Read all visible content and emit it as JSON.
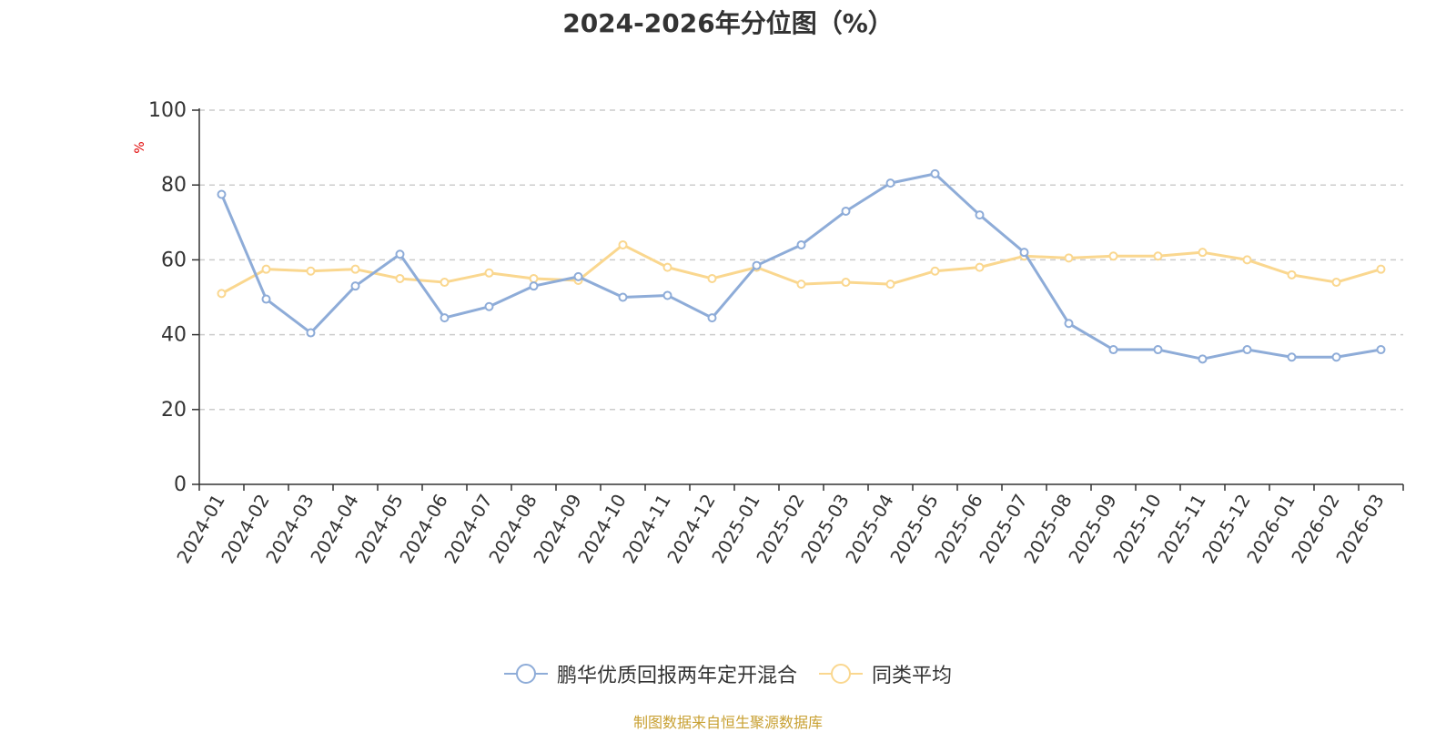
{
  "chart_data": {
    "type": "line",
    "title": "2024-2026年分位图（%）",
    "ylabel": "%",
    "xlabel": "",
    "ylim": [
      0,
      100
    ],
    "yticks": [
      0,
      20,
      40,
      60,
      80,
      100
    ],
    "grid": true,
    "legend_position": "bottom",
    "categories": [
      "2024-01",
      "2024-02",
      "2024-03",
      "2024-04",
      "2024-05",
      "2024-06",
      "2024-07",
      "2024-08",
      "2024-09",
      "2024-10",
      "2024-11",
      "2024-12",
      "2025-01",
      "2025-02",
      "2025-03",
      "2025-04",
      "2025-05",
      "2025-06",
      "2025-07",
      "2025-08",
      "2025-09",
      "2025-10",
      "2025-11",
      "2025-12",
      "2026-01",
      "2026-02",
      "2026-03"
    ],
    "series": [
      {
        "name": "鹏华优质回报两年定开混合",
        "color": "#8eacd8",
        "values": [
          77.5,
          49.5,
          40.5,
          53,
          61.5,
          44.5,
          47.5,
          53,
          55.5,
          50,
          50.5,
          44.5,
          58.5,
          64,
          73,
          80.5,
          83,
          72,
          62,
          43,
          36,
          36,
          33.5,
          36,
          34,
          34,
          36
        ]
      },
      {
        "name": "同类平均",
        "color": "#fad78f",
        "values": [
          51,
          57.5,
          57,
          57.5,
          55,
          54,
          56.5,
          55,
          54.5,
          64,
          58,
          55,
          58,
          53.5,
          54,
          53.5,
          57,
          58,
          61,
          60.5,
          61,
          61,
          62,
          60,
          56,
          54,
          57.5
        ]
      }
    ]
  },
  "source_note": "制图数据来自恒生聚源数据库"
}
